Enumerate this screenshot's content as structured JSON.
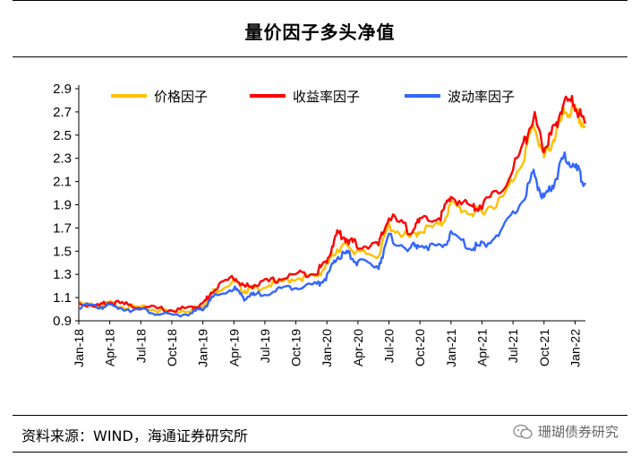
{
  "header": {
    "title": "量价因子多头净值"
  },
  "footer": {
    "source": "资料来源：WIND，海通证券研究所",
    "watermark": "珊瑚债券研究"
  },
  "chart_data": {
    "type": "line",
    "title": "量价因子多头净值",
    "ylim": [
      0.9,
      2.9
    ],
    "yticks": [
      0.9,
      1.1,
      1.3,
      1.5,
      1.7,
      1.9,
      2.1,
      2.3,
      2.5,
      2.7,
      2.9
    ],
    "x_range": [
      "2018-01",
      "2022-02"
    ],
    "xticks": [
      "Jan-18",
      "Apr-18",
      "Jul-18",
      "Oct-18",
      "Jan-19",
      "Apr-19",
      "Jul-19",
      "Oct-19",
      "Jan-20",
      "Apr-20",
      "Jul-20",
      "Oct-20",
      "Jan-21",
      "Apr-21",
      "Jul-21",
      "Oct-21",
      "Jan-22"
    ],
    "legend_position": "top",
    "grid": false,
    "series": [
      {
        "name": "价格因子",
        "color": "#ffc000",
        "points": [
          [
            "2018-01",
            1.04
          ],
          [
            "2018-03",
            1.03
          ],
          [
            "2018-04",
            1.05
          ],
          [
            "2018-06",
            1.02
          ],
          [
            "2018-08",
            1.0
          ],
          [
            "2018-10",
            0.98
          ],
          [
            "2018-12",
            1.0
          ],
          [
            "2019-01",
            1.03
          ],
          [
            "2019-02",
            1.15
          ],
          [
            "2019-04",
            1.24
          ],
          [
            "2019-05",
            1.16
          ],
          [
            "2019-06",
            1.18
          ],
          [
            "2019-08",
            1.22
          ],
          [
            "2019-10",
            1.27
          ],
          [
            "2019-12",
            1.28
          ],
          [
            "2020-01",
            1.38
          ],
          [
            "2020-02",
            1.52
          ],
          [
            "2020-03",
            1.55
          ],
          [
            "2020-04",
            1.48
          ],
          [
            "2020-06",
            1.47
          ],
          [
            "2020-07",
            1.72
          ],
          [
            "2020-09",
            1.61
          ],
          [
            "2020-10",
            1.68
          ],
          [
            "2020-12",
            1.72
          ],
          [
            "2021-01",
            1.9
          ],
          [
            "2021-03",
            1.83
          ],
          [
            "2021-04",
            1.85
          ],
          [
            "2021-06",
            1.95
          ],
          [
            "2021-08",
            2.3
          ],
          [
            "2021-09",
            2.6
          ],
          [
            "2021-10",
            2.3
          ],
          [
            "2021-11",
            2.48
          ],
          [
            "2021-12",
            2.7
          ],
          [
            "2022-01",
            2.7
          ],
          [
            "2022-02",
            2.57
          ]
        ]
      },
      {
        "name": "收益率因子",
        "color": "#ff0000",
        "points": [
          [
            "2018-01",
            1.05
          ],
          [
            "2018-03",
            1.03
          ],
          [
            "2018-04",
            1.06
          ],
          [
            "2018-06",
            1.03
          ],
          [
            "2018-08",
            1.01
          ],
          [
            "2018-10",
            0.99
          ],
          [
            "2018-12",
            1.01
          ],
          [
            "2019-01",
            1.04
          ],
          [
            "2019-02",
            1.17
          ],
          [
            "2019-04",
            1.28
          ],
          [
            "2019-05",
            1.19
          ],
          [
            "2019-06",
            1.21
          ],
          [
            "2019-08",
            1.25
          ],
          [
            "2019-10",
            1.3
          ],
          [
            "2019-12",
            1.32
          ],
          [
            "2020-01",
            1.42
          ],
          [
            "2020-02",
            1.66
          ],
          [
            "2020-03",
            1.6
          ],
          [
            "2020-04",
            1.55
          ],
          [
            "2020-06",
            1.55
          ],
          [
            "2020-07",
            1.8
          ],
          [
            "2020-09",
            1.68
          ],
          [
            "2020-10",
            1.75
          ],
          [
            "2020-12",
            1.8
          ],
          [
            "2021-01",
            1.97
          ],
          [
            "2021-03",
            1.88
          ],
          [
            "2021-04",
            1.9
          ],
          [
            "2021-06",
            2.05
          ],
          [
            "2021-08",
            2.4
          ],
          [
            "2021-09",
            2.67
          ],
          [
            "2021-10",
            2.38
          ],
          [
            "2021-11",
            2.55
          ],
          [
            "2021-12",
            2.8
          ],
          [
            "2022-01",
            2.76
          ],
          [
            "2022-02",
            2.6
          ]
        ]
      },
      {
        "name": "波动率因子",
        "color": "#3366ff",
        "points": [
          [
            "2018-01",
            1.03
          ],
          [
            "2018-03",
            1.02
          ],
          [
            "2018-04",
            1.03
          ],
          [
            "2018-06",
            1.0
          ],
          [
            "2018-08",
            0.98
          ],
          [
            "2018-10",
            0.94
          ],
          [
            "2018-12",
            0.97
          ],
          [
            "2019-01",
            1.0
          ],
          [
            "2019-02",
            1.1
          ],
          [
            "2019-04",
            1.18
          ],
          [
            "2019-05",
            1.1
          ],
          [
            "2019-06",
            1.12
          ],
          [
            "2019-08",
            1.16
          ],
          [
            "2019-10",
            1.2
          ],
          [
            "2019-12",
            1.21
          ],
          [
            "2020-01",
            1.28
          ],
          [
            "2020-02",
            1.45
          ],
          [
            "2020-03",
            1.48
          ],
          [
            "2020-04",
            1.4
          ],
          [
            "2020-06",
            1.38
          ],
          [
            "2020-07",
            1.62
          ],
          [
            "2020-09",
            1.52
          ],
          [
            "2020-10",
            1.56
          ],
          [
            "2020-12",
            1.52
          ],
          [
            "2021-01",
            1.64
          ],
          [
            "2021-03",
            1.53
          ],
          [
            "2021-04",
            1.55
          ],
          [
            "2021-06",
            1.68
          ],
          [
            "2021-08",
            1.95
          ],
          [
            "2021-09",
            2.18
          ],
          [
            "2021-10",
            1.93
          ],
          [
            "2021-11",
            2.1
          ],
          [
            "2021-12",
            2.32
          ],
          [
            "2022-01",
            2.22
          ],
          [
            "2022-02",
            2.09
          ]
        ]
      }
    ]
  }
}
